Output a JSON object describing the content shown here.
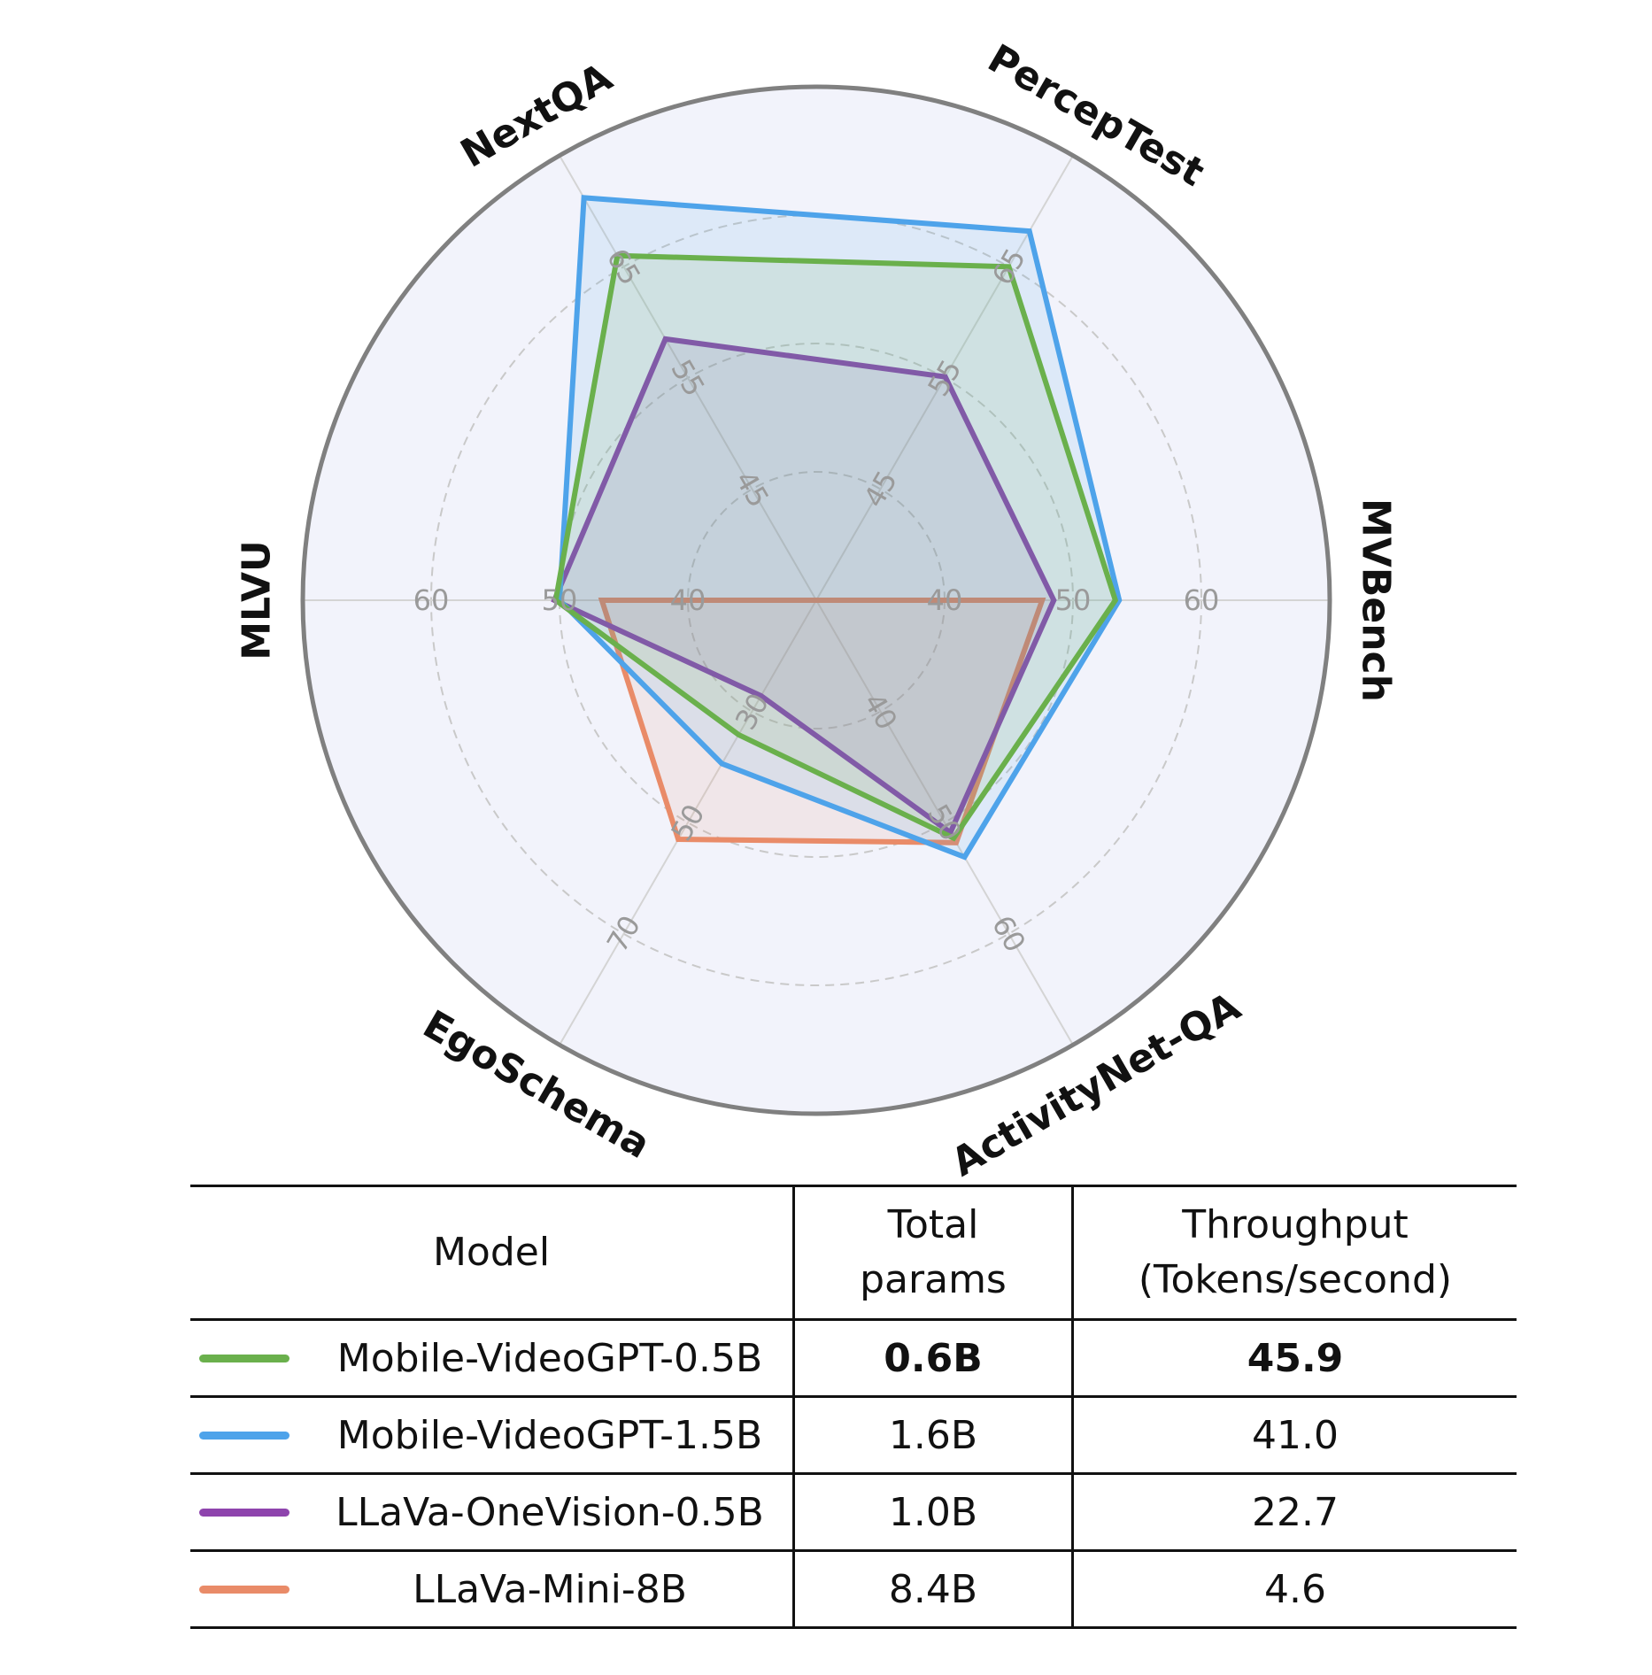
{
  "chart_data": {
    "type": "radar",
    "axes": [
      {
        "name": "MVBench",
        "ticks": [
          "40",
          "50",
          "60"
        ],
        "range": [
          30,
          70
        ]
      },
      {
        "name": "PercepTest",
        "ticks": [
          "45",
          "55",
          "65"
        ],
        "range": [
          35,
          75
        ]
      },
      {
        "name": "NextQA",
        "ticks": [
          "45",
          "55",
          "65"
        ],
        "range": [
          35,
          75
        ]
      },
      {
        "name": "MLVU",
        "ticks": [
          "40",
          "50",
          "60"
        ],
        "range": [
          30,
          70
        ]
      },
      {
        "name": "EgoSchema",
        "ticks": [
          "30",
          "50",
          "70"
        ],
        "range": [
          10,
          90
        ]
      },
      {
        "name": "ActivityNet-QA",
        "ticks": [
          "40",
          "50",
          "60"
        ],
        "range": [
          30,
          70
        ]
      }
    ],
    "series": [
      {
        "name": "Mobile-VideoGPT-0.5B",
        "color": "#6ab04c",
        "values": [
          53.3,
          65.0,
          66.0,
          50.3,
          34.2,
          51.4
        ]
      },
      {
        "name": "Mobile-VideoGPT-1.5B",
        "color": "#4ea3ea",
        "values": [
          53.6,
          68.2,
          71.2,
          50.0,
          39.4,
          53.1
        ]
      },
      {
        "name": "LLaVa-OneVision-0.5B",
        "color": "#8e44ad",
        "values": [
          48.5,
          55.1,
          58.5,
          50.4,
          27.2,
          50.9
        ]
      },
      {
        "name": "LLaVa-Mini-8B",
        "color": "#e98b68",
        "values": [
          47.6,
          null,
          null,
          46.7,
          53.0,
          51.8
        ]
      }
    ],
    "grid": true,
    "legend": "table-below"
  },
  "table": {
    "headers": {
      "model": "Model",
      "params_line1": "Total",
      "params_line2": "params",
      "throughput_line1": "Throughput",
      "throughput_line2": "(Tokens/second)"
    },
    "rows": [
      {
        "model": "Mobile-VideoGPT-0.5B",
        "params": "0.6B",
        "throughput": "45.9",
        "color": "#6ab04c"
      },
      {
        "model": "Mobile-VideoGPT-1.5B",
        "params": "1.6B",
        "throughput": "41.0",
        "color": "#4ea3ea"
      },
      {
        "model": "LLaVa-OneVision-0.5B",
        "params": "1.0B",
        "throughput": "22.7",
        "color": "#8e44ad"
      },
      {
        "model": "LLaVa-Mini-8B",
        "params": "8.4B",
        "throughput": "4.6",
        "color": "#e98b68"
      }
    ]
  }
}
